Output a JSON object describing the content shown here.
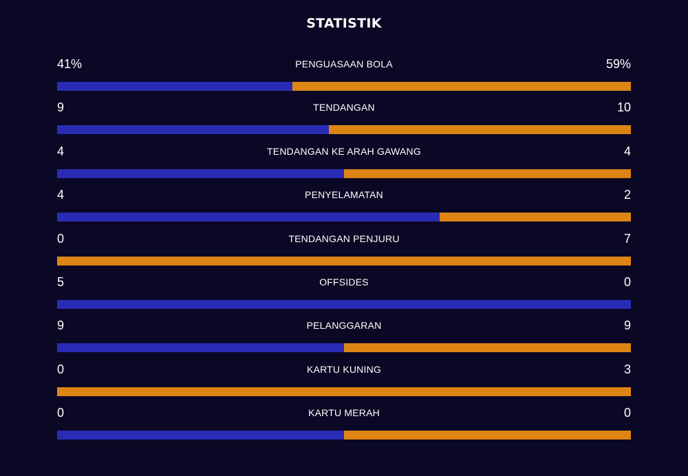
{
  "title": "STATISTIK",
  "colors": {
    "background": "#0a0824",
    "home_bar": "#2a2bb5",
    "away_bar": "#de8414",
    "text": "#ffffff"
  },
  "stats": [
    {
      "label": "PENGUASAAN BOLA",
      "home_text": "41%",
      "away_text": "59%",
      "home_share": 0.41
    },
    {
      "label": "TENDANGAN",
      "home_text": "9",
      "away_text": "10",
      "home_share": 0.4737
    },
    {
      "label": "TENDANGAN KE ARAH GAWANG",
      "home_text": "4",
      "away_text": "4",
      "home_share": 0.5
    },
    {
      "label": "PENYELAMATAN",
      "home_text": "4",
      "away_text": "2",
      "home_share": 0.6667
    },
    {
      "label": "TENDANGAN PENJURU",
      "home_text": "0",
      "away_text": "7",
      "home_share": 0
    },
    {
      "label": "OFFSIDES",
      "home_text": "5",
      "away_text": "0",
      "home_share": 1
    },
    {
      "label": "PELANGGARAN",
      "home_text": "9",
      "away_text": "9",
      "home_share": 0.5
    },
    {
      "label": "KARTU KUNING",
      "home_text": "0",
      "away_text": "3",
      "home_share": 0
    },
    {
      "label": "KARTU MERAH",
      "home_text": "0",
      "away_text": "0",
      "home_share": 0.5
    }
  ]
}
